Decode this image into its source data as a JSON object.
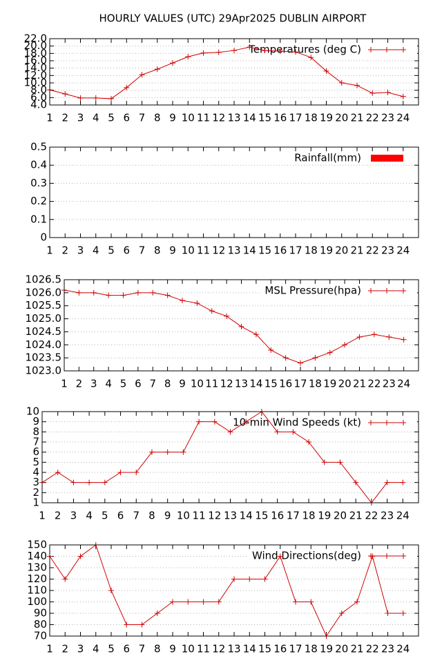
{
  "title": "HOURLY VALUES (UTC) 29Apr2025  DUBLIN AIRPORT",
  "chart_data": [
    {
      "type": "line",
      "legend": "top-right",
      "grid": true,
      "x": [
        1,
        2,
        3,
        4,
        5,
        6,
        7,
        8,
        9,
        10,
        11,
        12,
        13,
        14,
        15,
        16,
        17,
        18,
        19,
        20,
        21,
        22,
        23,
        24
      ],
      "xlim": [
        1,
        25
      ],
      "xticks": [
        1,
        2,
        3,
        4,
        5,
        6,
        7,
        8,
        9,
        10,
        11,
        12,
        13,
        14,
        15,
        16,
        17,
        18,
        19,
        20,
        21,
        22,
        23,
        24
      ],
      "ylim": [
        4,
        22
      ],
      "yticks": [
        {
          "value": 4,
          "label": "4.0"
        },
        {
          "value": 6,
          "label": "6.0"
        },
        {
          "value": 8,
          "label": "8.0"
        },
        {
          "value": 10,
          "label": "10.0"
        },
        {
          "value": 12,
          "label": "12.0"
        },
        {
          "value": 14,
          "label": "14.0"
        },
        {
          "value": 16,
          "label": "16.0"
        },
        {
          "value": 18,
          "label": "18.0"
        },
        {
          "value": 20,
          "label": "20.0"
        },
        {
          "value": 22,
          "label": "22.0"
        }
      ],
      "series": [
        {
          "name": "Temperatures (deg C)",
          "color": "#d00000",
          "values": [
            8.1,
            7.0,
            5.9,
            5.9,
            5.7,
            8.7,
            12.2,
            13.7,
            15.4,
            17.1,
            18.1,
            18.3,
            18.8,
            19.7,
            18.8,
            18.6,
            18.4,
            16.9,
            13.2,
            10.0,
            9.3,
            7.2,
            7.4,
            6.3
          ]
        }
      ]
    },
    {
      "type": "bar",
      "legend": "top-right",
      "grid": true,
      "x": [
        1,
        2,
        3,
        4,
        5,
        6,
        7,
        8,
        9,
        10,
        11,
        12,
        13,
        14,
        15,
        16,
        17,
        18,
        19,
        20,
        21,
        22,
        23,
        24
      ],
      "xlim": [
        1,
        25
      ],
      "xticks": [
        1,
        2,
        3,
        4,
        5,
        6,
        7,
        8,
        9,
        10,
        11,
        12,
        13,
        14,
        15,
        16,
        17,
        18,
        19,
        20,
        21,
        22,
        23,
        24
      ],
      "ylim": [
        0,
        0.5
      ],
      "yticks": [
        0,
        0.1,
        0.2,
        0.3,
        0.4,
        0.5
      ],
      "series": [
        {
          "name": "Rainfall(mm)",
          "color": "#ff0000",
          "values": [
            0,
            0,
            0,
            0,
            0,
            0,
            0,
            0,
            0,
            0,
            0,
            0,
            0,
            0,
            0,
            0,
            0,
            0,
            0,
            0,
            0,
            0,
            0,
            0
          ]
        }
      ]
    },
    {
      "type": "line",
      "legend": "top-right",
      "grid": true,
      "x": [
        1,
        2,
        3,
        4,
        5,
        6,
        7,
        8,
        9,
        10,
        11,
        12,
        13,
        14,
        15,
        16,
        17,
        18,
        19,
        20,
        21,
        22,
        23,
        24
      ],
      "xlim": [
        1,
        25
      ],
      "xticks": [
        1,
        2,
        3,
        4,
        5,
        6,
        7,
        8,
        9,
        10,
        11,
        12,
        13,
        14,
        15,
        16,
        17,
        18,
        19,
        20,
        21,
        22,
        23,
        24
      ],
      "ylim": [
        1023,
        1026.5
      ],
      "yticks": [
        {
          "value": 1023,
          "label": "1023.0"
        },
        1023.5,
        {
          "value": 1024,
          "label": "1024.0"
        },
        1024.5,
        {
          "value": 1025,
          "label": "1025.0"
        },
        1025.5,
        {
          "value": 1026,
          "label": "1026.0"
        },
        1026.5
      ],
      "series": [
        {
          "name": "MSL Pressure(hpa)",
          "color": "#d00000",
          "values": [
            1026.1,
            1026.0,
            1026.0,
            1025.9,
            1025.9,
            1026.0,
            1026.0,
            1025.9,
            1025.7,
            1025.6,
            1025.3,
            1025.1,
            1024.7,
            1024.4,
            1023.8,
            1023.5,
            1023.3,
            1023.5,
            1023.7,
            1024.0,
            1024.3,
            1024.4,
            1024.3,
            1024.2
          ]
        }
      ]
    },
    {
      "type": "line",
      "legend": "top-right",
      "grid": true,
      "x": [
        1,
        2,
        3,
        4,
        5,
        6,
        7,
        8,
        9,
        10,
        11,
        12,
        13,
        14,
        15,
        16,
        17,
        18,
        19,
        20,
        21,
        22,
        23,
        24
      ],
      "xlim": [
        1,
        25
      ],
      "xticks": [
        1,
        2,
        3,
        4,
        5,
        6,
        7,
        8,
        9,
        10,
        11,
        12,
        13,
        14,
        15,
        16,
        17,
        18,
        19,
        20,
        21,
        22,
        23,
        24
      ],
      "ylim": [
        1,
        10
      ],
      "yticks": [
        1,
        2,
        3,
        4,
        5,
        6,
        7,
        8,
        9,
        10
      ],
      "series": [
        {
          "name": "10-min Wind Speeds (kt)",
          "color": "#d00000",
          "values": [
            3,
            4,
            3,
            3,
            3,
            4,
            4,
            6,
            6,
            6,
            9,
            9,
            8,
            9,
            10,
            8,
            8,
            7,
            5,
            5,
            3,
            1,
            3,
            3
          ]
        }
      ]
    },
    {
      "type": "line",
      "legend": "top-right",
      "grid": true,
      "x": [
        1,
        2,
        3,
        4,
        5,
        6,
        7,
        8,
        9,
        10,
        11,
        12,
        13,
        14,
        15,
        16,
        17,
        18,
        19,
        20,
        21,
        22,
        23,
        24
      ],
      "xlim": [
        1,
        25
      ],
      "xticks": [
        1,
        2,
        3,
        4,
        5,
        6,
        7,
        8,
        9,
        10,
        11,
        12,
        13,
        14,
        15,
        16,
        17,
        18,
        19,
        20,
        21,
        22,
        23,
        24
      ],
      "ylim": [
        70,
        150
      ],
      "yticks": [
        70,
        80,
        90,
        100,
        110,
        120,
        130,
        140,
        150
      ],
      "series": [
        {
          "name": "Wind Directions(deg)",
          "color": "#d00000",
          "values": [
            140,
            120,
            140,
            150,
            110,
            80,
            80,
            90,
            100,
            100,
            100,
            100,
            120,
            120,
            120,
            140,
            100,
            100,
            70,
            90,
            100,
            140,
            90,
            90
          ]
        }
      ]
    }
  ]
}
